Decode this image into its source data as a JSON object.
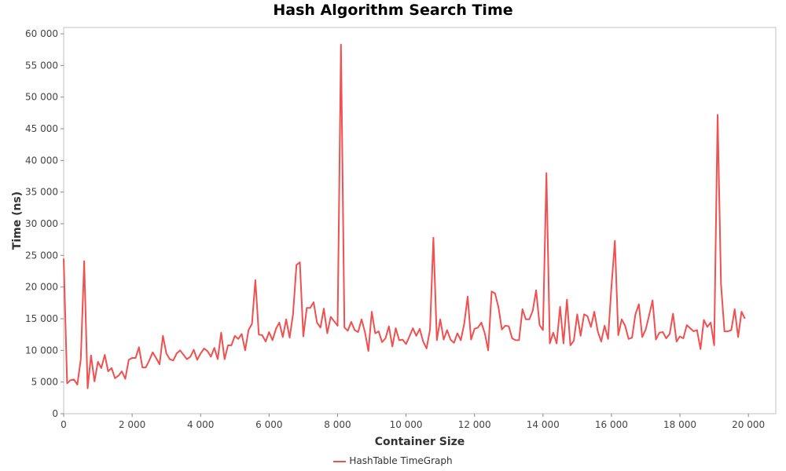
{
  "chart_data": {
    "type": "line",
    "title": "Hash Algorithm Search Time",
    "xlabel": "Container Size",
    "ylabel": "Time (ns)",
    "xlim": [
      0,
      20800
    ],
    "ylim": [
      0,
      61000
    ],
    "xticks": [
      0,
      2000,
      4000,
      6000,
      8000,
      10000,
      12000,
      14000,
      16000,
      18000,
      20000
    ],
    "xtick_labels": [
      "0",
      "2 000",
      "4 000",
      "6 000",
      "8 000",
      "10 000",
      "12 000",
      "14 000",
      "16 000",
      "18 000",
      "20 000"
    ],
    "yticks": [
      0,
      5000,
      10000,
      15000,
      20000,
      25000,
      30000,
      35000,
      40000,
      45000,
      50000,
      55000,
      60000
    ],
    "ytick_labels": [
      "0",
      "5 000",
      "10 000",
      "15 000",
      "20 000",
      "25 000",
      "30 000",
      "35 000",
      "40 000",
      "45 000",
      "50 000",
      "55 000",
      "60 000"
    ],
    "grid": false,
    "legend_position": "bottom-center",
    "series": [
      {
        "name": "HashTable TimeGraph",
        "color": "#f05050",
        "x": [
          0,
          100,
          200,
          300,
          400,
          500,
          600,
          700,
          800,
          900,
          1000,
          1100,
          1200,
          1300,
          1400,
          1500,
          1600,
          1700,
          1800,
          1900,
          2000,
          2100,
          2200,
          2300,
          2400,
          2500,
          2600,
          2700,
          2800,
          2900,
          3000,
          3100,
          3200,
          3300,
          3400,
          3500,
          3600,
          3700,
          3800,
          3900,
          4000,
          4100,
          4200,
          4300,
          4400,
          4500,
          4600,
          4700,
          4800,
          4900,
          5000,
          5100,
          5200,
          5300,
          5400,
          5500,
          5600,
          5700,
          5800,
          5900,
          6000,
          6100,
          6200,
          6300,
          6400,
          6500,
          6600,
          6700,
          6800,
          6900,
          7000,
          7100,
          7200,
          7300,
          7400,
          7500,
          7600,
          7700,
          7800,
          7900,
          8000,
          8100,
          8200,
          8300,
          8400,
          8500,
          8600,
          8700,
          8800,
          8900,
          9000,
          9100,
          9200,
          9300,
          9400,
          9500,
          9600,
          9700,
          9800,
          9900,
          10000,
          10100,
          10200,
          10300,
          10400,
          10500,
          10600,
          10700,
          10800,
          10900,
          11000,
          11100,
          11200,
          11300,
          11400,
          11500,
          11600,
          11700,
          11800,
          11900,
          12000,
          12100,
          12200,
          12300,
          12400,
          12500,
          12600,
          12700,
          12800,
          12900,
          13000,
          13100,
          13200,
          13300,
          13400,
          13500,
          13600,
          13700,
          13800,
          13900,
          14000,
          14100,
          14200,
          14300,
          14400,
          14500,
          14600,
          14700,
          14800,
          14900,
          15000,
          15100,
          15200,
          15300,
          15400,
          15500,
          15600,
          15700,
          15800,
          15900,
          16000,
          16100,
          16200,
          16300,
          16400,
          16500,
          16600,
          16700,
          16800,
          16900,
          17000,
          17100,
          17200,
          17300,
          17400,
          17500,
          17600,
          17700,
          17800,
          17900,
          18000,
          18100,
          18200,
          18300,
          18400,
          18500,
          18600,
          18700,
          18800,
          18900,
          19000,
          19100,
          19200,
          19300,
          19400,
          19500,
          19600,
          19700,
          19800,
          19900
        ],
        "values": [
          24500,
          4800,
          5300,
          5400,
          4600,
          8600,
          24100,
          4000,
          9200,
          5100,
          8200,
          7200,
          9300,
          6700,
          7200,
          5600,
          6000,
          6700,
          5500,
          8500,
          8800,
          8800,
          10500,
          7300,
          7300,
          8400,
          9700,
          8800,
          7800,
          12300,
          9500,
          8600,
          8400,
          9500,
          10000,
          9300,
          8600,
          9000,
          10100,
          8500,
          9500,
          10300,
          9900,
          9000,
          10400,
          8600,
          12800,
          8600,
          10800,
          10800,
          12300,
          11800,
          12600,
          10000,
          13200,
          14200,
          21100,
          12500,
          12400,
          11400,
          12900,
          11600,
          13400,
          14400,
          12100,
          14900,
          12000,
          15700,
          23500,
          23900,
          12200,
          16700,
          16700,
          17600,
          14400,
          13600,
          16600,
          12700,
          15300,
          14600,
          13900,
          58300,
          13600,
          13100,
          14500,
          13200,
          12900,
          14900,
          12900,
          9900,
          16100,
          12700,
          13000,
          11300,
          11900,
          13800,
          10600,
          13500,
          11600,
          11700,
          11000,
          12200,
          13500,
          12300,
          13400,
          11400,
          10300,
          13300,
          27800,
          11600,
          14900,
          11700,
          13200,
          11700,
          11200,
          12700,
          11600,
          14200,
          18500,
          11700,
          13400,
          13600,
          14400,
          12700,
          10000,
          19300,
          19000,
          16800,
          13300,
          13900,
          13800,
          11900,
          11600,
          11600,
          16500,
          14900,
          14900,
          16200,
          19500,
          14000,
          13200,
          38000,
          11100,
          12800,
          11100,
          16900,
          11100,
          18000,
          10800,
          11500,
          15700,
          12300,
          15700,
          15400,
          13700,
          16100,
          13000,
          11400,
          13900,
          11800,
          20000,
          27300,
          12400,
          14900,
          13900,
          11800,
          12000,
          15700,
          17300,
          12100,
          13300,
          15500,
          17900,
          11700,
          12800,
          12900,
          11900,
          12600,
          15800,
          11400,
          12200,
          11900,
          14000,
          13500,
          13000,
          13200,
          10200,
          14800,
          13700,
          14400,
          10800,
          47200,
          20500,
          13000,
          13000,
          13200,
          16500,
          12100,
          16100,
          15000
        ]
      }
    ]
  }
}
